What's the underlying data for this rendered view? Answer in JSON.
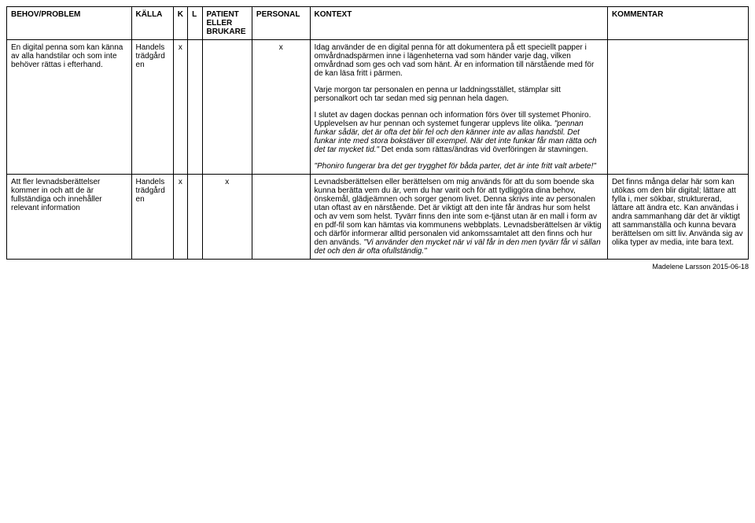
{
  "headers": {
    "behov": "BEHOV/PROBLEM",
    "kalla": "KÄLLA",
    "k": "K",
    "l": "L",
    "patient": "PATIENT ELLER BRUKARE",
    "personal": "PERSONAL",
    "kontext": "KONTEXT",
    "kommentar": "KOMMENTAR"
  },
  "rows": [
    {
      "behov": "En digital penna som kan känna av alla handstilar och som inte behöver rättas i efterhand.",
      "kalla": "Handels trädgård en",
      "k": "x",
      "l": "",
      "patient": "",
      "personal": "x",
      "kontext_p1": "Idag använder de en digital penna för att dokumentera på ett speciellt papper i omvårdnadspärmen inne i lägenheterna vad som händer varje dag, vilken omvårdnad som ges och vad som hänt. Är en information till närstående med för de kan läsa fritt i pärmen.",
      "kontext_p2": "Varje morgon tar personalen en penna ur laddningsstället, stämplar sitt personalkort och tar sedan med sig pennan hela dagen.",
      "kontext_p3_a": "I slutet av dagen dockas pennan och information förs över till systemet Phoniro. Upplevelsen av hur pennan och systemet fungerar upplevs lite olika. ",
      "kontext_p3_b": "\"pennan funkar sådär, det är ofta det blir fel och den känner inte av allas handstil. Det funkar inte med stora bokstäver till exempel. När det inte funkar får man rätta och det tar mycket tid.\"",
      "kontext_p3_c": " Det enda som rättas/ändras vid överföringen är stavningen.",
      "kontext_p4": "\"Phoniro fungerar bra det ger trygghet för båda parter, det är inte fritt valt arbete!\"",
      "kommentar": ""
    },
    {
      "behov": "Att fler levnadsberättelser kommer in och att de är fullständiga och innehåller relevant information",
      "kalla": "Handels trädgård en",
      "k": "x",
      "l": "",
      "patient": "x",
      "personal": "",
      "kontext_a": "Levnadsberättelsen eller berättelsen om mig används för att du som boende ska kunna berätta vem du är, vem du har varit och för att tydliggöra dina behov, önskemål, glädjeämnen och sorger genom livet. Denna skrivs inte av personalen utan oftast av en närstående. Det är viktigt att den inte får ändras hur som helst och av vem som helst. Tyvärr finns den inte som e-tjänst utan är en mall i form av en pdf-fil som kan hämtas via kommunens webbplats. Levnadsberättelsen är viktig och därför informerar alltid personalen vid ankomssamtalet att den finns och hur den används. ",
      "kontext_b": "\"Vi använder den mycket när vi väl får in den men tyvärr får vi sällan det och den är ofta ofullständig.\"",
      "kommentar": "Det finns många delar här som kan utökas om den blir digital; lättare att fylla i, mer sökbar, strukturerad, lättare att ändra etc. Kan användas i andra sammanhang där det är viktigt att sammanställa och kunna bevara berättelsen om sitt liv. Använda sig av olika typer av media, inte bara text."
    }
  ],
  "footer": "Madelene Larsson 2015-06-18"
}
